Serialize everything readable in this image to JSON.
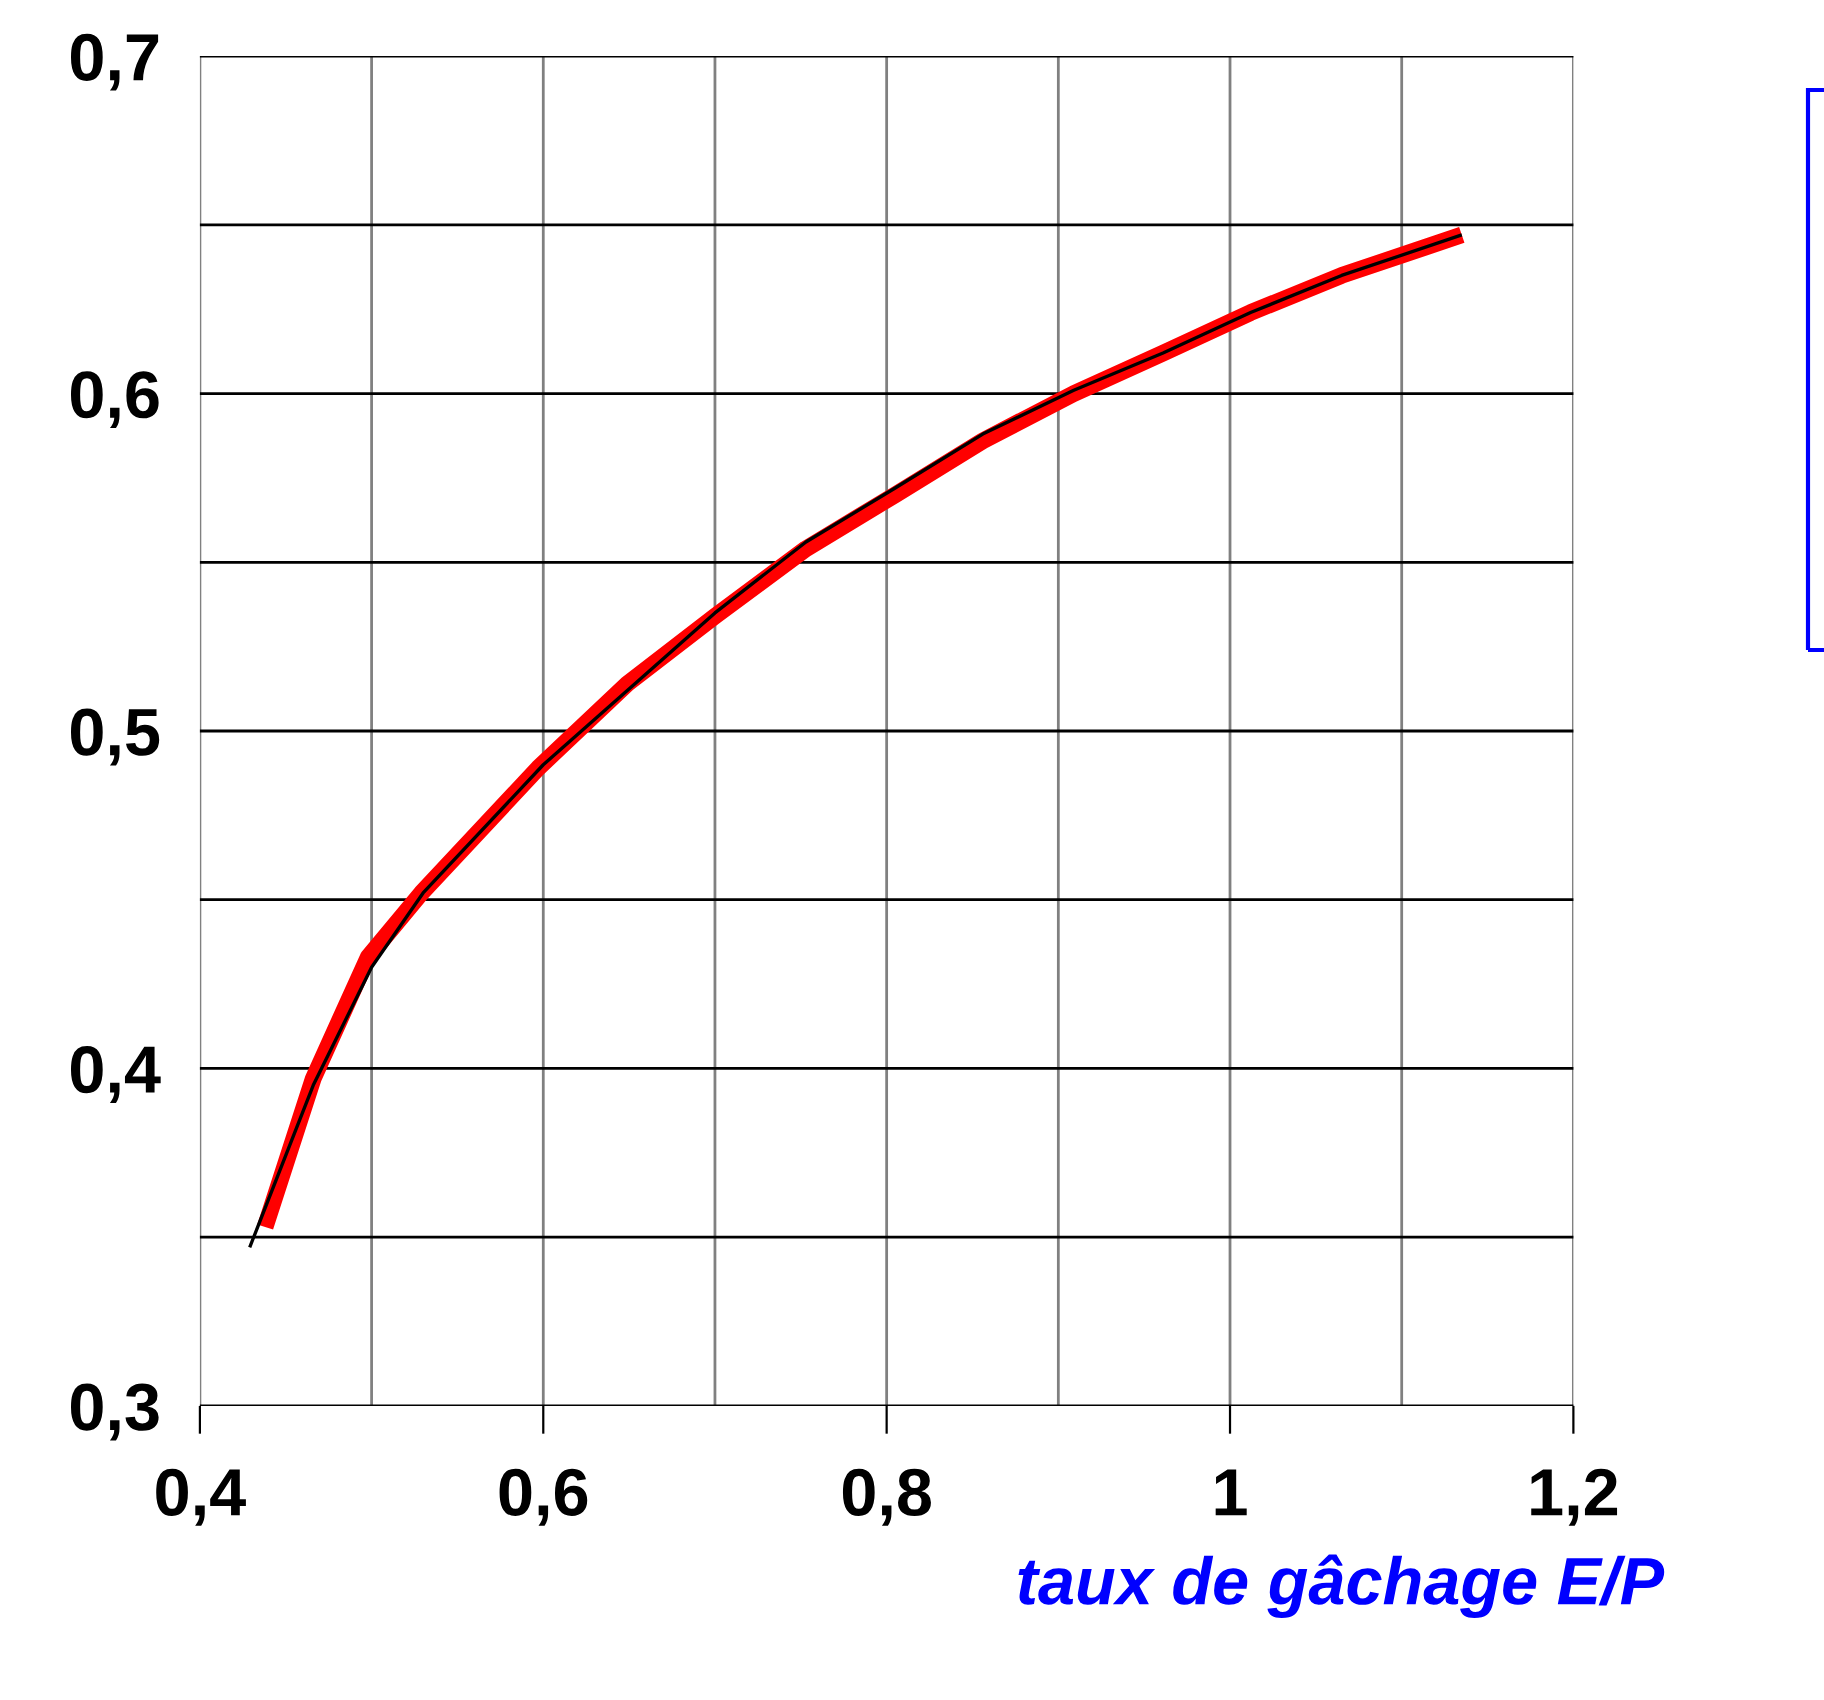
{
  "chart_data": {
    "type": "line",
    "xlabel": "taux de gâchage E/P",
    "xlim": [
      0.4,
      1.2
    ],
    "ylim": [
      0.3,
      0.7
    ],
    "xticks": [
      {
        "value": 0.4,
        "label": "0,4"
      },
      {
        "value": 0.5,
        "label": null
      },
      {
        "value": 0.6,
        "label": "0,6"
      },
      {
        "value": 0.7,
        "label": null
      },
      {
        "value": 0.8,
        "label": "0,8"
      },
      {
        "value": 0.9,
        "label": null
      },
      {
        "value": 1,
        "label": "1"
      },
      {
        "value": 1.1,
        "label": null
      },
      {
        "value": 1.2,
        "label": "1,2"
      }
    ],
    "yticks": [
      {
        "value": 0.3,
        "label": "0,3"
      },
      {
        "value": 0.35,
        "label": null
      },
      {
        "value": 0.4,
        "label": "0,4"
      },
      {
        "value": 0.45,
        "label": null
      },
      {
        "value": 0.5,
        "label": "0,5"
      },
      {
        "value": 0.55,
        "label": null
      },
      {
        "value": 0.6,
        "label": "0,6"
      },
      {
        "value": 0.65,
        "label": null
      },
      {
        "value": 0.7,
        "label": "0,7"
      }
    ],
    "grid": true,
    "legend": false,
    "marker": "none",
    "line_style": "solid",
    "series": [
      {
        "color": "#000000",
        "x": [
          0.429,
          0.466,
          0.5,
          0.53,
          0.6,
          0.7,
          0.753,
          0.805,
          0.856,
          0.909,
          0.961,
          1.012,
          1.065,
          1.135
        ],
        "values": [
          0.347,
          0.395,
          0.43,
          0.452,
          0.49,
          0.535,
          0.556,
          0.572,
          0.588,
          0.601,
          0.612,
          0.624,
          0.635,
          0.647
        ]
      },
      {
        "color": "#ff0000",
        "x": [
          0.438,
          0.466,
          0.498,
          0.529,
          0.597,
          0.649,
          0.7,
          0.753,
          0.805,
          0.856,
          0.909,
          0.961,
          1.012,
          1.065,
          1.135
        ],
        "values": [
          0.353,
          0.397,
          0.433,
          0.452,
          0.489,
          0.514,
          0.534,
          0.554,
          0.57,
          0.586,
          0.6,
          0.612,
          0.624,
          0.635,
          0.647
        ]
      }
    ]
  }
}
